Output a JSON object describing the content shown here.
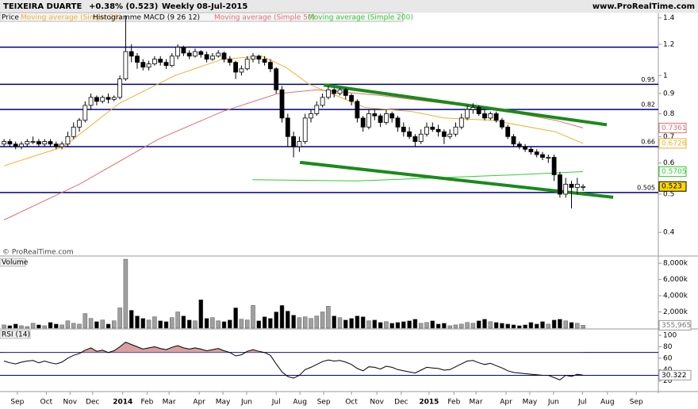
{
  "chart_data": {
    "type": "candlestick",
    "title": "TEIXEIRA DUARTE",
    "change": "+0.38% (0.523)",
    "period": "Weekly",
    "date": "08-Jul-2015",
    "site": "www.ProRealTime.com",
    "copyright": "© ProRealTime.com",
    "price_label": "Price",
    "macd_label": "Histogramme MACD (9 26 12)",
    "log_scale": true,
    "xlim": [
      -0.7,
      113
    ],
    "xticks": [
      {
        "value": 2.3,
        "label": "Sep"
      },
      {
        "value": 7.3,
        "label": "Oct"
      },
      {
        "value": 11.4,
        "label": "Nov"
      },
      {
        "value": 15.3,
        "label": "Dec"
      },
      {
        "value": 20.5,
        "label": "2014"
      },
      {
        "value": 24.7,
        "label": "Feb"
      },
      {
        "value": 28.5,
        "label": "Mar"
      },
      {
        "value": 33.7,
        "label": "Apr"
      },
      {
        "value": 37.8,
        "label": "May"
      },
      {
        "value": 41.9,
        "label": "Jun"
      },
      {
        "value": 47,
        "label": "Jul"
      },
      {
        "value": 51.1,
        "label": "Aug"
      },
      {
        "value": 55.2,
        "label": "Sep"
      },
      {
        "value": 60,
        "label": "Oct"
      },
      {
        "value": 64.4,
        "label": "Nov"
      },
      {
        "value": 68.6,
        "label": "Dec"
      },
      {
        "value": 73.4,
        "label": "2015"
      },
      {
        "value": 77.7,
        "label": "Feb"
      },
      {
        "value": 81.5,
        "label": "Mar"
      },
      {
        "value": 86.7,
        "label": "Apr"
      },
      {
        "value": 90.8,
        "label": "May"
      },
      {
        "value": 94.9,
        "label": "Jun"
      },
      {
        "value": 99.9,
        "label": "Jul"
      },
      {
        "value": 104.2,
        "label": "Aug"
      },
      {
        "value": 109.2,
        "label": "Sep"
      }
    ],
    "ylim": [
      0.35,
      1.43
    ],
    "yticks": [
      1.4,
      1.2,
      1,
      0.9,
      0.8,
      0.7,
      0.6,
      0.5,
      0.4
    ],
    "up_color": "#ffffff",
    "down_color": "#000000",
    "ohlc": [
      [
        0.67,
        0.69,
        0.66,
        0.68
      ],
      [
        0.68,
        0.69,
        0.66,
        0.67
      ],
      [
        0.67,
        0.68,
        0.65,
        0.66
      ],
      [
        0.66,
        0.68,
        0.65,
        0.67
      ],
      [
        0.67,
        0.69,
        0.66,
        0.68
      ],
      [
        0.68,
        0.7,
        0.67,
        0.68
      ],
      [
        0.68,
        0.69,
        0.66,
        0.67
      ],
      [
        0.67,
        0.69,
        0.66,
        0.68
      ],
      [
        0.68,
        0.69,
        0.66,
        0.67
      ],
      [
        0.67,
        0.68,
        0.65,
        0.66
      ],
      [
        0.66,
        0.68,
        0.65,
        0.67
      ],
      [
        0.67,
        0.72,
        0.66,
        0.7
      ],
      [
        0.7,
        0.76,
        0.69,
        0.74
      ],
      [
        0.74,
        0.78,
        0.72,
        0.77
      ],
      [
        0.77,
        0.86,
        0.76,
        0.84
      ],
      [
        0.84,
        0.9,
        0.82,
        0.88
      ],
      [
        0.88,
        0.89,
        0.84,
        0.86
      ],
      [
        0.86,
        0.89,
        0.85,
        0.88
      ],
      [
        0.88,
        0.9,
        0.85,
        0.87
      ],
      [
        0.87,
        0.89,
        0.86,
        0.88
      ],
      [
        0.88,
        1.0,
        0.87,
        0.98
      ],
      [
        0.98,
        1.42,
        0.97,
        1.15
      ],
      [
        1.15,
        1.2,
        1.08,
        1.12
      ],
      [
        1.12,
        1.14,
        1.04,
        1.08
      ],
      [
        1.08,
        1.1,
        1.03,
        1.05
      ],
      [
        1.05,
        1.09,
        1.03,
        1.07
      ],
      [
        1.07,
        1.12,
        1.06,
        1.1
      ],
      [
        1.1,
        1.12,
        1.06,
        1.08
      ],
      [
        1.08,
        1.1,
        1.04,
        1.06
      ],
      [
        1.06,
        1.14,
        1.05,
        1.12
      ],
      [
        1.12,
        1.2,
        1.1,
        1.18
      ],
      [
        1.18,
        1.19,
        1.12,
        1.14
      ],
      [
        1.14,
        1.16,
        1.1,
        1.12
      ],
      [
        1.12,
        1.17,
        1.11,
        1.15
      ],
      [
        1.15,
        1.16,
        1.11,
        1.13
      ],
      [
        1.13,
        1.15,
        1.08,
        1.1
      ],
      [
        1.1,
        1.14,
        1.09,
        1.12
      ],
      [
        1.12,
        1.16,
        1.11,
        1.14
      ],
      [
        1.14,
        1.15,
        1.08,
        1.1
      ],
      [
        1.1,
        1.12,
        1.06,
        1.08
      ],
      [
        1.08,
        1.09,
        0.98,
        1.02
      ],
      [
        1.02,
        1.06,
        1.0,
        1.04
      ],
      [
        1.04,
        1.12,
        1.03,
        1.1
      ],
      [
        1.1,
        1.14,
        1.08,
        1.12
      ],
      [
        1.12,
        1.13,
        1.07,
        1.1
      ],
      [
        1.1,
        1.12,
        1.06,
        1.08
      ],
      [
        1.08,
        1.1,
        1.02,
        1.04
      ],
      [
        1.04,
        1.05,
        0.9,
        0.92
      ],
      [
        0.92,
        0.94,
        0.76,
        0.78
      ],
      [
        0.78,
        0.8,
        0.66,
        0.7
      ],
      [
        0.7,
        0.72,
        0.62,
        0.66
      ],
      [
        0.66,
        0.7,
        0.64,
        0.68
      ],
      [
        0.68,
        0.8,
        0.67,
        0.78
      ],
      [
        0.78,
        0.82,
        0.76,
        0.8
      ],
      [
        0.8,
        0.86,
        0.79,
        0.84
      ],
      [
        0.84,
        0.9,
        0.83,
        0.88
      ],
      [
        0.88,
        0.94,
        0.87,
        0.92
      ],
      [
        0.92,
        0.93,
        0.88,
        0.9
      ],
      [
        0.9,
        0.93,
        0.89,
        0.92
      ],
      [
        0.92,
        0.93,
        0.87,
        0.89
      ],
      [
        0.89,
        0.9,
        0.84,
        0.86
      ],
      [
        0.86,
        0.87,
        0.76,
        0.78
      ],
      [
        0.78,
        0.79,
        0.72,
        0.74
      ],
      [
        0.74,
        0.82,
        0.73,
        0.8
      ],
      [
        0.8,
        0.82,
        0.77,
        0.79
      ],
      [
        0.79,
        0.8,
        0.74,
        0.76
      ],
      [
        0.76,
        0.82,
        0.75,
        0.8
      ],
      [
        0.8,
        0.81,
        0.76,
        0.78
      ],
      [
        0.78,
        0.79,
        0.72,
        0.74
      ],
      [
        0.74,
        0.76,
        0.7,
        0.72
      ],
      [
        0.72,
        0.74,
        0.69,
        0.7
      ],
      [
        0.7,
        0.71,
        0.66,
        0.68
      ],
      [
        0.68,
        0.73,
        0.67,
        0.71
      ],
      [
        0.71,
        0.76,
        0.7,
        0.74
      ],
      [
        0.74,
        0.76,
        0.72,
        0.73
      ],
      [
        0.73,
        0.75,
        0.7,
        0.72
      ],
      [
        0.72,
        0.73,
        0.67,
        0.7
      ],
      [
        0.7,
        0.73,
        0.69,
        0.71
      ],
      [
        0.71,
        0.76,
        0.7,
        0.74
      ],
      [
        0.74,
        0.8,
        0.73,
        0.78
      ],
      [
        0.78,
        0.84,
        0.77,
        0.82
      ],
      [
        0.82,
        0.85,
        0.8,
        0.83
      ],
      [
        0.83,
        0.84,
        0.79,
        0.8
      ],
      [
        0.8,
        0.82,
        0.77,
        0.78
      ],
      [
        0.78,
        0.81,
        0.77,
        0.8
      ],
      [
        0.8,
        0.81,
        0.76,
        0.77
      ],
      [
        0.77,
        0.78,
        0.73,
        0.74
      ],
      [
        0.74,
        0.75,
        0.69,
        0.7
      ],
      [
        0.7,
        0.71,
        0.66,
        0.67
      ],
      [
        0.67,
        0.68,
        0.65,
        0.66
      ],
      [
        0.66,
        0.67,
        0.64,
        0.65
      ],
      [
        0.65,
        0.66,
        0.63,
        0.64
      ],
      [
        0.64,
        0.65,
        0.62,
        0.63
      ],
      [
        0.63,
        0.64,
        0.61,
        0.62
      ],
      [
        0.62,
        0.63,
        0.6,
        0.62
      ],
      [
        0.62,
        0.63,
        0.54,
        0.56
      ],
      [
        0.56,
        0.57,
        0.49,
        0.5
      ],
      [
        0.5,
        0.55,
        0.49,
        0.53
      ],
      [
        0.53,
        0.54,
        0.46,
        0.52
      ],
      [
        0.52,
        0.55,
        0.5,
        0.53
      ],
      [
        0.52,
        0.53,
        0.51,
        0.523
      ]
    ],
    "series": [
      {
        "name": "Moving average (Simple 20)",
        "color": "#f0b030",
        "x": [
          0,
          10.3,
          19.9,
          29.5,
          37.7,
          44.5,
          48.6,
          52.7,
          56.5,
          62.3,
          70.5,
          76,
          84.2,
          95.2,
          100
        ],
        "values": [
          0.59,
          0.66,
          0.85,
          1.0,
          1.1,
          1.12,
          1.05,
          0.95,
          0.9,
          0.83,
          0.81,
          0.78,
          0.77,
          0.72,
          0.6726
        ]
      },
      {
        "name": "Moving average (Simple 50)",
        "color": "#e07070",
        "x": [
          0,
          13,
          26.7,
          37.7,
          47.3,
          54.1,
          65,
          76,
          87,
          95.2,
          100
        ],
        "values": [
          0.43,
          0.53,
          0.69,
          0.81,
          0.9,
          0.92,
          0.89,
          0.85,
          0.81,
          0.77,
          0.7361
        ]
      },
      {
        "name": "Moving average (Simple 200)",
        "color": "#33cc33",
        "x": [
          42.9,
          61,
          74.7,
          88.4,
          100
        ],
        "values": [
          0.544,
          0.54,
          0.55,
          0.56,
          0.5705
        ]
      }
    ],
    "levels": [
      1.18,
      0.95,
      0.82,
      0.66,
      0.505
    ],
    "level_labeled": [
      false,
      true,
      true,
      true,
      true
    ],
    "level_color": "#000080",
    "trend_color": "#1a8a1a",
    "trendlines": [
      {
        "x": [
          55.2,
          104.1
        ],
        "values": [
          0.946,
          0.75
        ]
      },
      {
        "x": [
          51.1,
          105.2
        ],
        "values": [
          0.602,
          0.491
        ]
      }
    ],
    "volume": {
      "label": "Volume",
      "ylim": [
        0,
        8600
      ],
      "yticks": [
        {
          "value": 8000,
          "label": "8,000k"
        },
        {
          "value": 6000,
          "label": "6,000k"
        },
        {
          "value": 4000,
          "label": "4,000k"
        },
        {
          "value": 2000,
          "label": "2,000k"
        }
      ],
      "values": [
        400,
        300,
        500,
        300,
        200,
        600,
        400,
        300,
        700,
        500,
        400,
        900,
        600,
        500,
        1800,
        1200,
        800,
        1000,
        500,
        900,
        2500,
        8500,
        2200,
        1500,
        1200,
        1000,
        1400,
        900,
        800,
        1300,
        2000,
        1500,
        1000,
        900,
        3500,
        1200,
        1300,
        900,
        800,
        1000,
        2500,
        1100,
        1000,
        2800,
        900,
        1400,
        1200,
        2000,
        2800,
        2100,
        1600,
        1300,
        1400,
        1200,
        1500,
        2000,
        2700,
        1500,
        1300,
        1000,
        1200,
        1500,
        1400,
        900,
        1000,
        700,
        800,
        600,
        700,
        800,
        900,
        1100,
        600,
        700,
        900,
        500,
        600,
        300,
        400,
        500,
        700,
        600,
        900,
        1100,
        800,
        700,
        600,
        500,
        400,
        300,
        400,
        700,
        500,
        800,
        500,
        1000,
        1100,
        900,
        700,
        600,
        355.965
      ],
      "tag": {
        "value": 355.965,
        "label": "355,965"
      },
      "up_color": "#a0a0a0",
      "down_color": "#000000"
    },
    "rsi": {
      "label": "RSI (14)",
      "ylim": [
        3,
        107
      ],
      "yticks": [
        100,
        80,
        60,
        40,
        20
      ],
      "levels": [
        70,
        30
      ],
      "color": "#000000",
      "values": [
        55,
        52,
        50,
        53,
        55,
        56,
        52,
        55,
        52,
        50,
        53,
        60,
        65,
        68,
        74,
        78,
        72,
        74,
        70,
        73,
        80,
        88,
        84,
        80,
        76,
        78,
        80,
        77,
        75,
        79,
        82,
        78,
        76,
        78,
        76,
        73,
        75,
        77,
        73,
        70,
        64,
        66,
        72,
        75,
        72,
        70,
        65,
        50,
        36,
        28,
        25,
        30,
        40,
        44,
        49,
        54,
        57,
        55,
        56,
        53,
        49,
        42,
        38,
        45,
        44,
        41,
        46,
        44,
        40,
        38,
        36,
        34,
        39,
        44,
        43,
        42,
        39,
        40,
        45,
        50,
        55,
        56,
        52,
        49,
        51,
        47,
        43,
        38,
        35,
        34,
        33,
        32,
        31,
        30,
        30,
        26,
        22,
        30,
        28,
        32,
        30.322
      ]
    }
  }
}
